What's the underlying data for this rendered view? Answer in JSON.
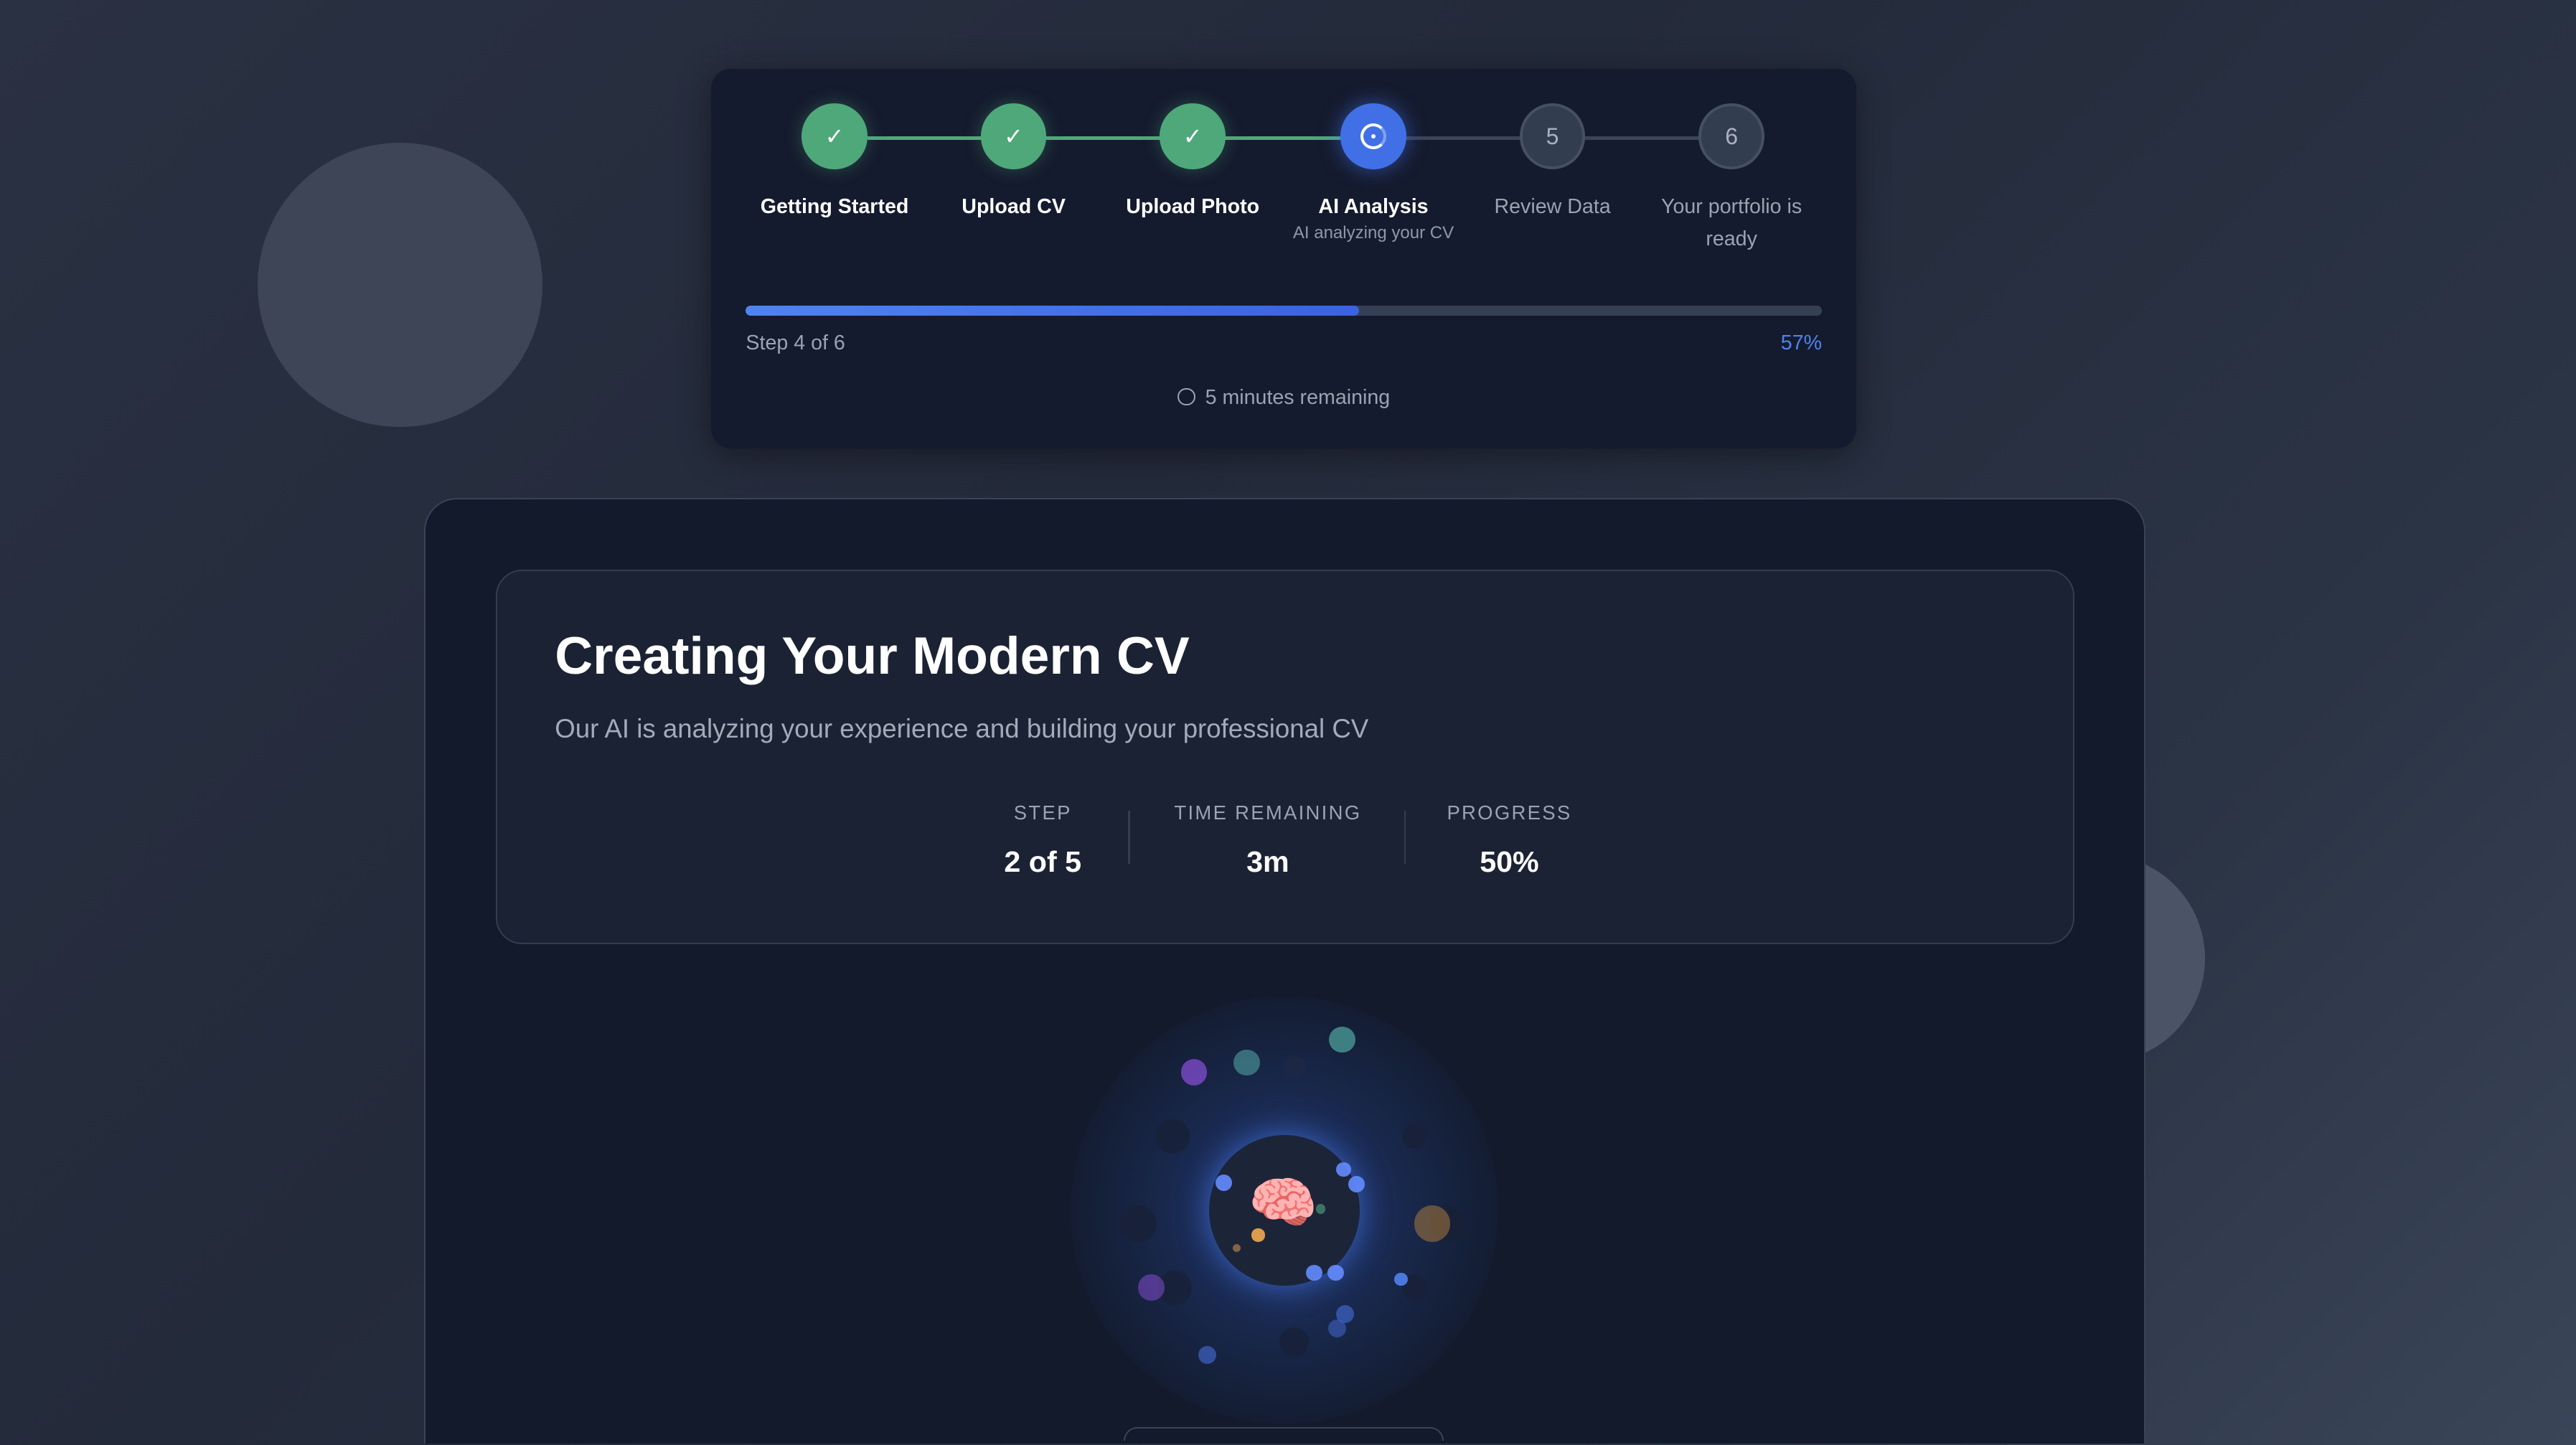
{
  "stepper": {
    "steps": [
      {
        "label": "Getting Started",
        "status": "complete",
        "icon": "check-icon"
      },
      {
        "label": "Upload CV",
        "status": "complete",
        "icon": "check-icon"
      },
      {
        "label": "Upload Photo",
        "status": "complete",
        "icon": "check-icon"
      },
      {
        "label": "AI Analysis",
        "status": "active",
        "sublabel": "AI analyzing your CV",
        "icon": "loading-ring-icon"
      },
      {
        "label": "Review Data",
        "status": "pending",
        "number": "5"
      },
      {
        "label": "Your portfolio is ready",
        "status": "pending",
        "number": "6"
      }
    ],
    "progress_percent": 57,
    "step_text": "Step 4 of 6",
    "percent_text": "57%",
    "time_remaining": "5 minutes remaining"
  },
  "card": {
    "title": "Creating Your Modern CV",
    "subtitle": "Our AI is analyzing your experience and building your professional CV",
    "stats": [
      {
        "label": "STEP",
        "value": "2 of 5"
      },
      {
        "label": "TIME REMAINING",
        "value": "3m"
      },
      {
        "label": "PROGRESS",
        "value": "50%"
      }
    ]
  },
  "visual": {
    "center_icon": "brain-icon",
    "center_emoji": "🧠"
  },
  "colors": {
    "complete": "#4fa87a",
    "active": "#4170e6",
    "pending": "#333d50",
    "accent": "#4f83ef"
  }
}
